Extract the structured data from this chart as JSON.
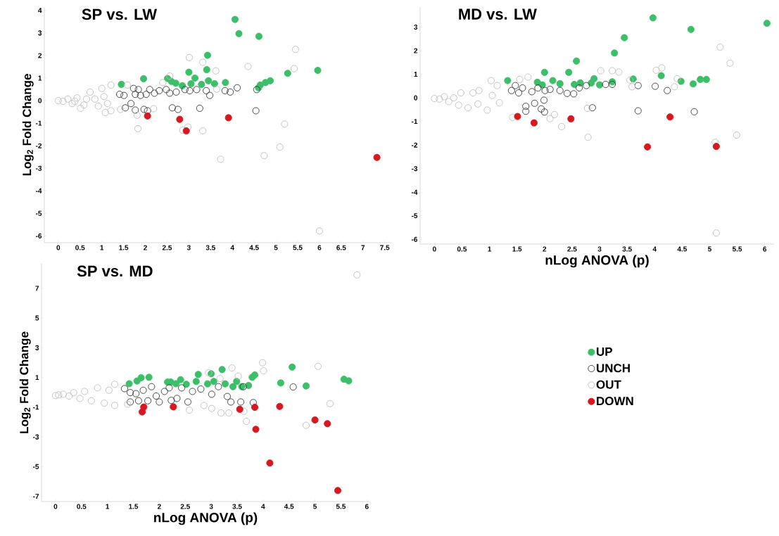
{
  "chart_data": [
    {
      "type": "scatter",
      "title": "SP vs. LW",
      "ylabel": "Log$_{2}$ Fold Change",
      "marker": "circle",
      "xlim": [
        -0.32,
        7.65
      ],
      "ylim": [
        -6.3,
        4.15
      ],
      "xticks": [
        0,
        0.5,
        1,
        1.5,
        2,
        2.5,
        3,
        3.5,
        4,
        4.5,
        5,
        5.5,
        6,
        6.5,
        7,
        7.5
      ],
      "yticks": [
        -6,
        -5,
        -4,
        -3,
        -2,
        -1,
        0,
        1,
        2,
        3,
        4
      ],
      "series": [
        {
          "color": "#3dbf6a",
          "x": [
            4.06,
            4.15,
            4.61,
            3.43,
            3.0,
            3.41,
            3.14,
            5.27,
            5.96,
            1.45,
            1.96,
            2.51,
            2.6,
            2.7,
            2.85,
            3.05,
            3.29,
            3.45,
            3.59,
            3.84,
            4.87,
            4.76,
            4.64,
            4.6
          ],
          "values": [
            3.6,
            2.97,
            2.85,
            2.01,
            1.26,
            1.37,
            1.0,
            1.21,
            1.34,
            0.72,
            0.97,
            0.98,
            0.85,
            0.77,
            0.66,
            0.75,
            0.72,
            0.88,
            0.75,
            0.8,
            0.88,
            0.8,
            0.69,
            0.57
          ]
        },
        {
          "color": "#3a3a3a",
          "x": [
            1.41,
            1.51,
            1.54,
            1.67,
            1.73,
            1.77,
            1.77,
            1.84,
            1.89,
            1.97,
            2.02,
            2.05,
            2.1,
            2.21,
            2.32,
            2.48,
            2.56,
            2.62,
            2.71,
            2.75,
            2.91,
            3.02,
            3.18,
            3.25,
            3.4,
            3.48,
            3.83,
            3.95,
            4.11,
            4.56,
            4.54
          ],
          "values": [
            0.28,
            0.23,
            -0.32,
            -0.13,
            0.54,
            0.28,
            -0.42,
            0.49,
            0.23,
            -0.39,
            0.28,
            -0.45,
            0.49,
            0.33,
            0.44,
            0.49,
            0.33,
            -0.32,
            0.38,
            -0.39,
            0.49,
            0.44,
            0.49,
            -0.34,
            0.44,
            0.23,
            0.44,
            0.38,
            0.57,
            0.49,
            -0.45
          ]
        },
        {
          "color": "#bdbdbd",
          "x": [
            0,
            0.11,
            0.22,
            0.32,
            0.43,
            0.51,
            0.59,
            0.73,
            0.84,
            0.92,
            1.0,
            1.05,
            1.08,
            1.21,
            1.21,
            1.13,
            0.38,
            0.65,
            1.43,
            1.59,
            1.81,
            1.83,
            2.19,
            2.4,
            2.56,
            3.01,
            3.32,
            3.62,
            2.98,
            2.86,
            3.32,
            3.73,
            4.36,
            5.45,
            5.42,
            5.2,
            5.09,
            4.73,
            6.0,
            3.64
          ],
          "values": [
            0,
            -0.03,
            0.07,
            -0.13,
            0.12,
            -0.34,
            -0.19,
            0.38,
            0.07,
            -0.24,
            0.54,
            0.18,
            -0.53,
            0.69,
            -0.45,
            -0.13,
            -0.03,
            0.07,
            -0.39,
            0.69,
            -0.65,
            -1.24,
            -0.36,
            0.8,
            1.09,
            1.91,
            1.7,
            1.32,
            -1.17,
            -1.31,
            -1.34,
            -2.6,
            1.51,
            2.27,
            1.42,
            -1.04,
            -2.06,
            -2.44,
            -5.78,
            0.51
          ]
        },
        {
          "color": "#d7191f",
          "x": [
            2.05,
            2.79,
            2.94,
            3.91,
            7.32
          ],
          "values": [
            -0.68,
            -0.83,
            -1.34,
            -0.76,
            -2.52
          ]
        }
      ]
    },
    {
      "type": "scatter",
      "title": "MD vs. LW",
      "xlabel": "nLog ANOVA (p)",
      "marker": "circle",
      "xlim": [
        -0.26,
        6.17
      ],
      "ylim": [
        -6.2,
        3.85
      ],
      "xticks": [
        0,
        0.5,
        1,
        1.5,
        2,
        2.5,
        3,
        3.5,
        4,
        4.5,
        5,
        5.5,
        6
      ],
      "yticks": [
        -6,
        -5,
        -4,
        -3,
        -2,
        -1,
        0,
        1,
        2,
        3
      ],
      "series": [
        {
          "color": "#3dbf6a",
          "x": [
            3.97,
            4.66,
            6.04,
            3.45,
            3.27,
            2.58,
            2.0,
            2.44,
            1.33,
            4.12,
            3.61,
            4.48,
            4.7,
            4.83,
            4.94,
            1.87,
            1.96,
            2.15,
            2.28,
            2.54,
            2.65,
            2.85,
            2.9,
            3.0,
            3.23
          ],
          "values": [
            3.39,
            2.9,
            3.16,
            2.55,
            1.9,
            1.56,
            1.08,
            1.08,
            0.73,
            0.94,
            0.8,
            0.7,
            0.59,
            0.78,
            0.78,
            0.66,
            0.55,
            0.73,
            0.6,
            0.57,
            0.63,
            0.63,
            0.81,
            0.55,
            0.68
          ]
        },
        {
          "color": "#3a3a3a",
          "x": [
            1.4,
            1.47,
            1.53,
            1.6,
            1.66,
            1.66,
            1.77,
            1.82,
            1.88,
            1.94,
            1.99,
            2.0,
            2.01,
            2.1,
            2.28,
            2.41,
            2.53,
            2.63,
            2.76,
            2.87,
            3.11,
            3.23,
            3.7,
            3.7,
            4.01,
            4.23,
            4.72
          ],
          "values": [
            0.31,
            0.52,
            0.21,
            0.42,
            -0.36,
            -0.57,
            0.26,
            -0.23,
            0.42,
            -0.47,
            -0.1,
            -0.6,
            0.31,
            0.36,
            0.31,
            0.19,
            0.17,
            0.42,
            0.52,
            -0.42,
            0.57,
            0.57,
            0.52,
            -0.55,
            0.49,
            0.31,
            -0.59
          ]
        },
        {
          "color": "#bdbdbd",
          "x": [
            0,
            0.09,
            0.18,
            0.26,
            0.35,
            0.44,
            0.48,
            0.61,
            0.7,
            0.79,
            0.81,
            0.96,
            1.03,
            1.05,
            1.14,
            1.18,
            1.42,
            1.55,
            1.7,
            2.1,
            2.18,
            2.31,
            2.78,
            2.79,
            3.02,
            3.23,
            3.35,
            3.55,
            3.59,
            4.03,
            4.13,
            4.36,
            4.41,
            5.19,
            5.37,
            5.1,
            5.49,
            5.12
          ],
          "values": [
            -0.03,
            -0.05,
            0.05,
            -0.16,
            0,
            -0.31,
            0.21,
            -0.42,
            0.21,
            -0.26,
            0.31,
            -0.52,
            0.73,
            0.1,
            0.52,
            -0.21,
            -0.83,
            0.78,
            0.88,
            -0.88,
            -0.71,
            -1.22,
            -0.44,
            -1.67,
            1.15,
            1.15,
            1.09,
            0.75,
            0.47,
            1.17,
            1.27,
            0.47,
            0.81,
            2.15,
            1.47,
            -1.88,
            -1.58,
            -5.73
          ]
        },
        {
          "color": "#d7191f",
          "x": [
            1.51,
            1.81,
            2.48,
            4.28,
            3.87,
            5.12
          ],
          "values": [
            -0.79,
            -1.06,
            -0.89,
            -0.81,
            -2.08,
            -2.06
          ]
        }
      ]
    },
    {
      "type": "scatter",
      "title": "SP vs. MD",
      "xlabel": "nLog ANOVA (p)",
      "ylabel": "Log$_{2}$ Fold Change",
      "marker": "circle",
      "legend": "right",
      "xlim": [
        -0.27,
        6.05
      ],
      "ylim": [
        -7.35,
        8.65
      ],
      "xticks": [
        0,
        0.5,
        1,
        1.5,
        2,
        2.5,
        3,
        3.5,
        4,
        4.5,
        5,
        5.5,
        6
      ],
      "yticks": [
        -7,
        -5,
        -3,
        -1,
        1,
        3,
        5,
        7
      ],
      "series": [
        {
          "name": "UP",
          "color": "#3dbf6a",
          "x": [
            1.42,
            1.57,
            1.65,
            1.8,
            2.16,
            2.22,
            2.32,
            2.41,
            2.52,
            2.71,
            2.75,
            2.93,
            3.0,
            3.05,
            3.21,
            3.27,
            3.42,
            3.49,
            3.59,
            3.72,
            3.79,
            3.84,
            4.34,
            4.56,
            4.83,
            5.56,
            5.65
          ],
          "values": [
            0.58,
            0.76,
            0.98,
            1.01,
            0.69,
            0.69,
            0.58,
            0.85,
            0.54,
            0.73,
            1.2,
            0.57,
            1.25,
            0.73,
            1.53,
            0.57,
            0.38,
            0.73,
            0.38,
            0.46,
            1.01,
            1.17,
            0.63,
            1.7,
            0.43,
            0.88,
            0.77
          ]
        },
        {
          "name": "UNCH",
          "color": "#3a3a3a",
          "x": [
            1.33,
            1.44,
            1.44,
            1.55,
            1.6,
            1.69,
            1.78,
            1.85,
            1.94,
            2.0,
            2.1,
            2.19,
            2.23,
            2.34,
            2.43,
            2.55,
            2.64,
            2.8,
            3.01,
            3.14,
            3.31,
            3.38,
            3.57,
            3.62,
            3.81,
            4.58
          ],
          "values": [
            0.25,
            -0.02,
            -0.65,
            -0.09,
            -0.57,
            0.14,
            -0.57,
            0.38,
            -0.25,
            -0.65,
            0.06,
            0.3,
            -0.54,
            -0.41,
            0.3,
            -0.65,
            0.06,
            0.22,
            -0.13,
            0.38,
            -0.28,
            -0.65,
            -0.65,
            0.38,
            -0.69,
            0.36
          ]
        },
        {
          "name": "OUT",
          "color": "#bdbdbd",
          "x": [
            0,
            0.06,
            0.15,
            0.26,
            0.35,
            0.47,
            0.56,
            0.69,
            0.81,
            0.94,
            1.03,
            1.14,
            1.14,
            1.39,
            2.86,
            2.58,
            3.01,
            2.95,
            3.17,
            3.19,
            3.34,
            3.4,
            3.52,
            3.63,
            3.68,
            3.99,
            4.01,
            5.06,
            5.29,
            4.83,
            5.81
          ],
          "values": [
            -0.22,
            -0.17,
            -0.13,
            -0.25,
            -0.02,
            -0.41,
            0.06,
            -0.57,
            0.3,
            -0.73,
            0.14,
            -0.88,
            0.54,
            -0.8,
            -0.88,
            -1.2,
            -1.09,
            1.32,
            0.93,
            -1.39,
            -1.39,
            1.64,
            1.09,
            -1.28,
            -1.95,
            1.99,
            1.45,
            1.75,
            -0.76,
            -2.22,
            7.9
          ]
        },
        {
          "name": "DOWN",
          "color": "#d7191f",
          "x": [
            1.67,
            1.7,
            2.27,
            3.55,
            3.84,
            3.86,
            4.32,
            4.13,
            5.0,
            5.24,
            5.44
          ],
          "values": [
            -1.32,
            -0.99,
            -0.98,
            -1.14,
            -1.01,
            -2.49,
            -0.95,
            -4.76,
            -1.86,
            -2.11,
            -6.61
          ]
        }
      ]
    }
  ]
}
